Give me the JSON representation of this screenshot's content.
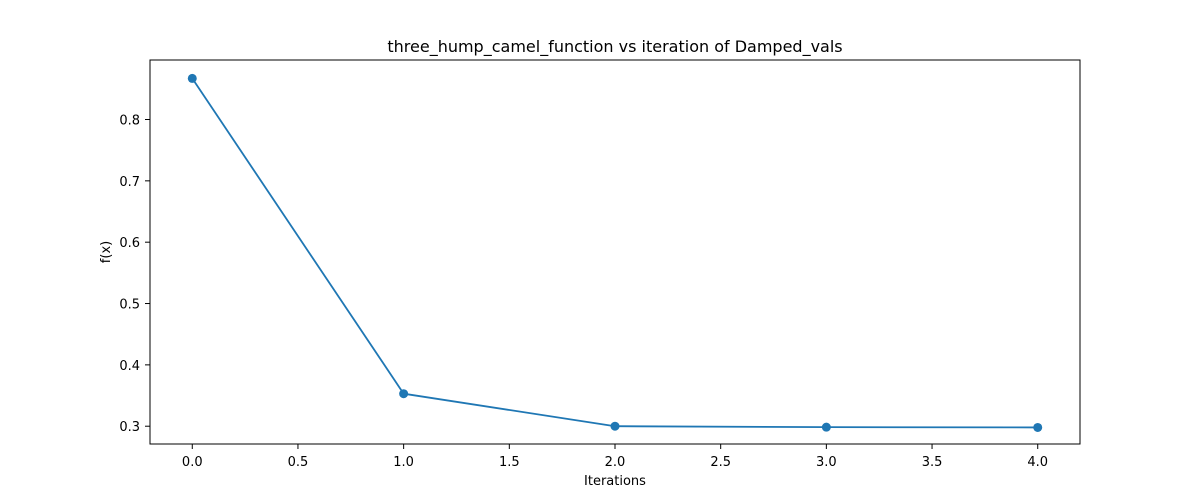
{
  "chart_data": {
    "type": "line",
    "title": "three_hump_camel_function vs iteration of Damped_vals",
    "xlabel": "Iterations",
    "ylabel": "f(x)",
    "xlim": [
      -0.2,
      4.2
    ],
    "ylim": [
      0.271,
      0.897
    ],
    "x_ticks": [
      0.0,
      0.5,
      1.0,
      1.5,
      2.0,
      2.5,
      3.0,
      3.5,
      4.0
    ],
    "x_tick_labels": [
      "0.0",
      "0.5",
      "1.0",
      "1.5",
      "2.0",
      "2.5",
      "3.0",
      "3.5",
      "4.0"
    ],
    "y_ticks": [
      0.3,
      0.4,
      0.5,
      0.6,
      0.7,
      0.8
    ],
    "y_tick_labels": [
      "0.3",
      "0.4",
      "0.5",
      "0.6",
      "0.7",
      "0.8"
    ],
    "grid": false,
    "legend": "none",
    "series": [
      {
        "x": [
          0,
          1,
          2,
          3,
          4
        ],
        "y": [
          0.867,
          0.353,
          0.3,
          0.2985,
          0.298
        ],
        "color": "#1f77b4",
        "marker": "circle"
      }
    ]
  }
}
